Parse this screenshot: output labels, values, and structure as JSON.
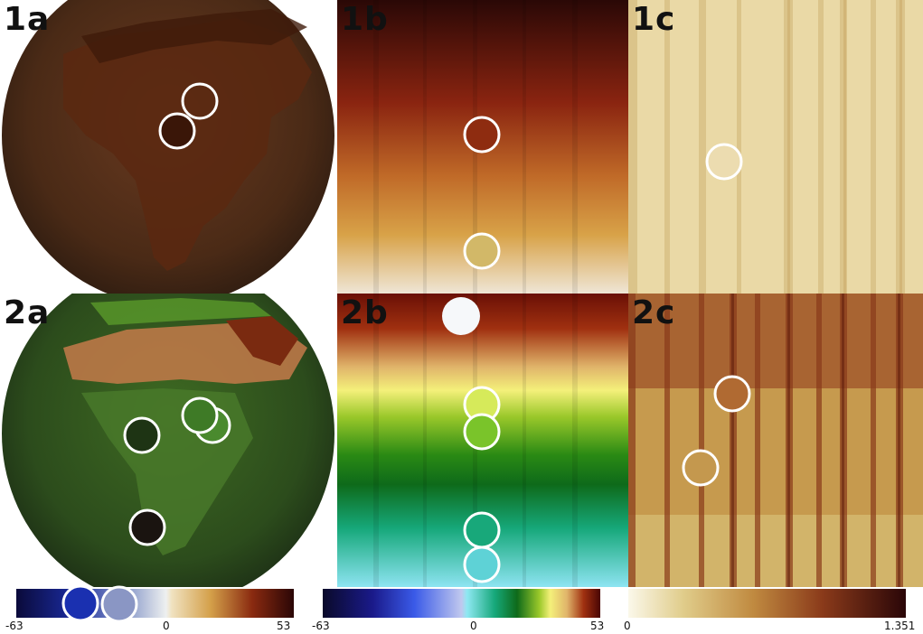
{
  "panels": {
    "p1a": {
      "label": "1a"
    },
    "p1b": {
      "label": "1b"
    },
    "p1c": {
      "label": "1c"
    },
    "p2a": {
      "label": "2a"
    },
    "p2b": {
      "label": "2b"
    },
    "p2c": {
      "label": "2c"
    }
  },
  "colorbars": {
    "left": {
      "min_label": "-63",
      "mid_label": "0",
      "max_label": "53"
    },
    "middle": {
      "min_label": "-63",
      "mid_label": "0",
      "max_label": "53"
    },
    "right": {
      "min_label": "0",
      "max_label": "1.351"
    }
  },
  "colors": {
    "marker_outline": "#ffffff",
    "label_text": "#111111"
  }
}
